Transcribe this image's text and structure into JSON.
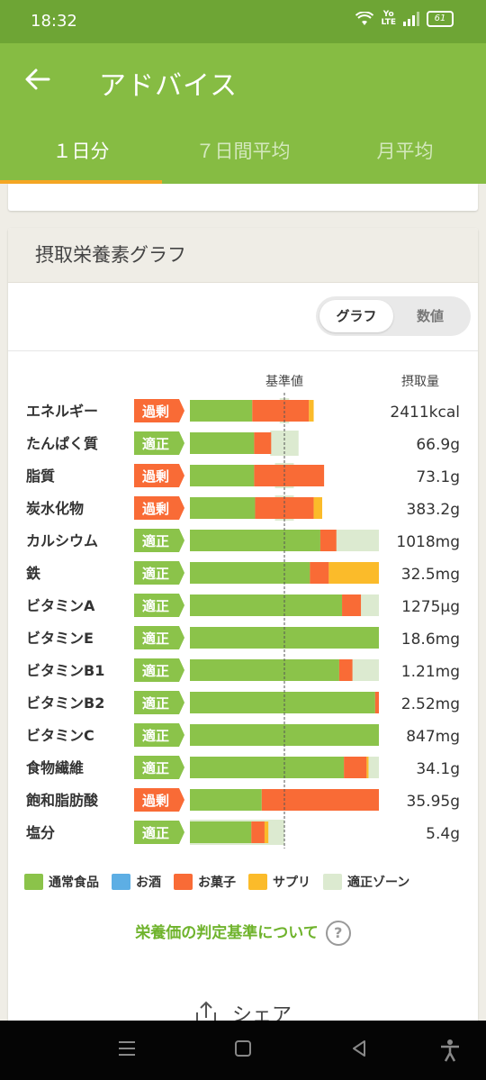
{
  "status_bar": {
    "time": "18:32",
    "network_label": "Yo LTE",
    "battery": "61"
  },
  "app_bar": {
    "title": "アドバイス"
  },
  "tabs": [
    {
      "label": "１日分",
      "active": true
    },
    {
      "label": "７日間平均",
      "active": false
    },
    {
      "label": "月平均",
      "active": false
    }
  ],
  "card": {
    "title": "摂取栄養素グラフ",
    "toggle": {
      "graph": "グラフ",
      "values": "数値",
      "selected": "graph"
    }
  },
  "colors": {
    "normal_food": "#8bc34a",
    "alcohol": "#5daee4",
    "snacks": "#f96b36",
    "supplement": "#fbbb2a",
    "appropriate_zone": "#dcead0",
    "badge_excess": "#f96b36",
    "badge_ok": "#8bc34a"
  },
  "chart_data": {
    "type": "bar",
    "stacked": true,
    "orientation": "horizontal",
    "reference_label": "基準値",
    "amount_header": "摂取量",
    "scale_note": "percent of reference value (reference = 100)",
    "rows": [
      {
        "name": "エネルギー",
        "status": "過剰",
        "amount": "2411kcal",
        "normal": 66,
        "snacks": 60,
        "supplement": 5,
        "zone": [
          95,
          105
        ]
      },
      {
        "name": "たんぱく質",
        "status": "適正",
        "amount": "66.9g",
        "normal": 68,
        "snacks": 18,
        "supplement": 0,
        "zone": [
          85,
          115
        ]
      },
      {
        "name": "脂質",
        "status": "過剰",
        "amount": "73.1g",
        "normal": 68,
        "snacks": 74,
        "supplement": 0,
        "zone": [
          90,
          110
        ]
      },
      {
        "name": "炭水化物",
        "status": "過剰",
        "amount": "383.2g",
        "normal": 69,
        "snacks": 62,
        "supplement": 9,
        "zone": [
          90,
          110
        ]
      },
      {
        "name": "カルシウム",
        "status": "適正",
        "amount": "1018mg",
        "normal": 138,
        "snacks": 17,
        "supplement": 0,
        "zone": [
          100,
          200
        ]
      },
      {
        "name": "鉄",
        "status": "適正",
        "amount": "32.5mg",
        "normal": 127,
        "snacks": 20,
        "supplement": 53,
        "zone": [
          100,
          200
        ]
      },
      {
        "name": "ビタミンA",
        "status": "適正",
        "amount": "1275μg",
        "normal": 161,
        "snacks": 20,
        "supplement": 0,
        "zone": [
          100,
          200
        ]
      },
      {
        "name": "ビタミンE",
        "status": "適正",
        "amount": "18.6mg",
        "normal": 200,
        "snacks": 0,
        "supplement": 0,
        "zone": [
          100,
          200
        ]
      },
      {
        "name": "ビタミンB1",
        "status": "適正",
        "amount": "1.21mg",
        "normal": 158,
        "snacks": 14,
        "supplement": 0,
        "zone": [
          100,
          200
        ]
      },
      {
        "name": "ビタミンB2",
        "status": "適正",
        "amount": "2.52mg",
        "normal": 196,
        "snacks": 4,
        "supplement": 0,
        "zone": [
          100,
          200
        ]
      },
      {
        "name": "ビタミンC",
        "status": "適正",
        "amount": "847mg",
        "normal": 200,
        "snacks": 0,
        "supplement": 0,
        "zone": [
          100,
          200
        ]
      },
      {
        "name": "食物繊維",
        "status": "適正",
        "amount": "34.1g",
        "normal": 163,
        "snacks": 24,
        "supplement": 2,
        "zone": [
          100,
          200
        ]
      },
      {
        "name": "飽和脂肪酸",
        "status": "過剰",
        "amount": "35.95g",
        "normal": 76,
        "snacks": 124,
        "supplement": 0,
        "zone": [
          0,
          0
        ]
      },
      {
        "name": "塩分",
        "status": "適正",
        "amount": "5.4g",
        "normal": 65,
        "snacks": 14,
        "supplement": 4,
        "zone": [
          0,
          100
        ]
      }
    ],
    "legend": [
      {
        "label": "通常食品",
        "color": "#8bc34a"
      },
      {
        "label": "お酒",
        "color": "#5daee4"
      },
      {
        "label": "お菓子",
        "color": "#f96b36"
      },
      {
        "label": "サプリ",
        "color": "#fbbb2a"
      },
      {
        "label": "適正ゾーン",
        "color": "#dcead0"
      }
    ]
  },
  "criteria_link": {
    "label": "栄養価の判定基準について",
    "help": "?"
  },
  "share": {
    "label": "シェア"
  }
}
